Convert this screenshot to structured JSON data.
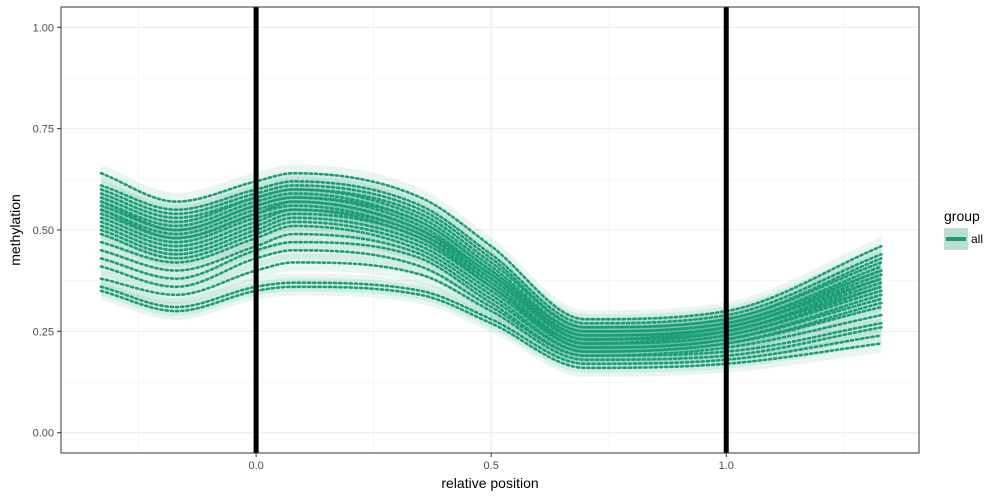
{
  "chart_data": {
    "type": "line",
    "title": "",
    "xlabel": "relative position",
    "ylabel": "methylation",
    "xlim": [
      -0.415,
      1.41
    ],
    "ylim": [
      -0.05,
      1.05
    ],
    "x_ticks": [
      0.0,
      0.5,
      1.0
    ],
    "x_tick_labels": [
      "0.0",
      "0.5",
      "1.0"
    ],
    "y_ticks": [
      0.0,
      0.25,
      0.5,
      0.75,
      1.0
    ],
    "y_tick_labels": [
      "0.00",
      "0.25",
      "0.50",
      "0.75",
      "1.00"
    ],
    "grid": true,
    "vlines": [
      0.0,
      1.0
    ],
    "vline_color": "#000000",
    "series_color": "#1b9e77",
    "line_style": "dotted",
    "legend": {
      "title": "group",
      "entries": [
        "all"
      ],
      "position": "right"
    },
    "x": [
      -0.33,
      -0.17,
      0.0,
      0.08,
      0.35,
      0.5,
      0.7,
      1.0,
      1.33
    ],
    "series": [
      {
        "values": [
          0.64,
          0.57,
          0.62,
          0.64,
          0.58,
          0.46,
          0.28,
          0.3,
          0.46
        ]
      },
      {
        "values": [
          0.61,
          0.55,
          0.6,
          0.62,
          0.56,
          0.44,
          0.27,
          0.29,
          0.44
        ]
      },
      {
        "values": [
          0.6,
          0.54,
          0.59,
          0.61,
          0.55,
          0.43,
          0.26,
          0.28,
          0.43
        ]
      },
      {
        "values": [
          0.59,
          0.53,
          0.58,
          0.6,
          0.54,
          0.42,
          0.26,
          0.28,
          0.42
        ]
      },
      {
        "values": [
          0.58,
          0.52,
          0.58,
          0.6,
          0.53,
          0.41,
          0.25,
          0.27,
          0.41
        ]
      },
      {
        "values": [
          0.57,
          0.51,
          0.57,
          0.59,
          0.52,
          0.4,
          0.25,
          0.27,
          0.4
        ]
      },
      {
        "values": [
          0.57,
          0.5,
          0.56,
          0.58,
          0.52,
          0.4,
          0.24,
          0.26,
          0.4
        ]
      },
      {
        "values": [
          0.56,
          0.5,
          0.56,
          0.58,
          0.51,
          0.39,
          0.24,
          0.26,
          0.39
        ]
      },
      {
        "values": [
          0.55,
          0.49,
          0.55,
          0.57,
          0.5,
          0.39,
          0.23,
          0.26,
          0.38
        ]
      },
      {
        "values": [
          0.55,
          0.48,
          0.54,
          0.57,
          0.5,
          0.38,
          0.23,
          0.25,
          0.38
        ]
      },
      {
        "values": [
          0.54,
          0.48,
          0.54,
          0.56,
          0.49,
          0.38,
          0.23,
          0.25,
          0.37
        ]
      },
      {
        "values": [
          0.53,
          0.47,
          0.53,
          0.55,
          0.49,
          0.37,
          0.22,
          0.25,
          0.36
        ]
      },
      {
        "values": [
          0.52,
          0.46,
          0.52,
          0.55,
          0.48,
          0.37,
          0.22,
          0.24,
          0.36
        ]
      },
      {
        "values": [
          0.51,
          0.45,
          0.51,
          0.54,
          0.48,
          0.36,
          0.22,
          0.24,
          0.35
        ]
      },
      {
        "values": [
          0.5,
          0.44,
          0.5,
          0.53,
          0.47,
          0.36,
          0.21,
          0.23,
          0.34
        ]
      },
      {
        "values": [
          0.49,
          0.43,
          0.49,
          0.52,
          0.46,
          0.35,
          0.21,
          0.23,
          0.33
        ]
      },
      {
        "values": [
          0.47,
          0.42,
          0.48,
          0.51,
          0.45,
          0.34,
          0.2,
          0.22,
          0.32
        ]
      },
      {
        "values": [
          0.45,
          0.4,
          0.46,
          0.49,
          0.44,
          0.33,
          0.2,
          0.22,
          0.31
        ]
      },
      {
        "values": [
          0.43,
          0.38,
          0.45,
          0.47,
          0.43,
          0.32,
          0.19,
          0.21,
          0.29
        ]
      },
      {
        "values": [
          0.41,
          0.36,
          0.43,
          0.45,
          0.41,
          0.31,
          0.19,
          0.2,
          0.27
        ]
      },
      {
        "values": [
          0.38,
          0.34,
          0.4,
          0.42,
          0.39,
          0.3,
          0.18,
          0.19,
          0.26
        ]
      },
      {
        "values": [
          0.36,
          0.31,
          0.36,
          0.37,
          0.35,
          0.28,
          0.17,
          0.18,
          0.24
        ]
      },
      {
        "values": [
          0.35,
          0.3,
          0.35,
          0.36,
          0.34,
          0.27,
          0.16,
          0.17,
          0.22
        ]
      }
    ]
  }
}
